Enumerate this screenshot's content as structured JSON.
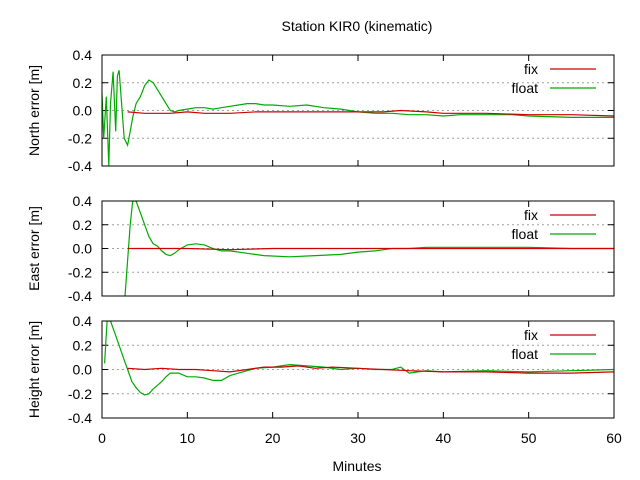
{
  "chart_data": {
    "type": "line",
    "title": "Station KIR0 (kinematic)",
    "xlabel": "Minutes",
    "xlim": [
      0,
      60
    ],
    "x_ticks": [
      0,
      10,
      20,
      30,
      40,
      50,
      60
    ],
    "x_tick_labels": [
      "0",
      "10",
      "20",
      "30",
      "40",
      "50",
      "60"
    ],
    "grid": "horizontal dotted",
    "legend_position": "top-right",
    "series_colors": {
      "fix": "#cc0000",
      "float": "#00aa00"
    },
    "panels": [
      {
        "ylabel": "North error [m]",
        "ylim": [
          -0.4,
          0.4
        ],
        "y_ticks": [
          -0.4,
          -0.2,
          0.0,
          0.2,
          0.4
        ],
        "y_tick_labels": [
          "-0.4",
          "-0.2",
          "0.0",
          "0.2",
          "0.4"
        ],
        "series": [
          {
            "name": "fix",
            "color": "#cc0000",
            "x": [
              3,
              5,
              8,
              10,
              12,
              15,
              18,
              20,
              22,
              25,
              28,
              30,
              33,
              35,
              38,
              40,
              45,
              50,
              55,
              60
            ],
            "y": [
              -0.01,
              -0.02,
              -0.02,
              -0.01,
              -0.02,
              -0.02,
              -0.01,
              -0.01,
              -0.01,
              -0.01,
              -0.01,
              -0.01,
              -0.01,
              0.0,
              -0.01,
              -0.02,
              -0.02,
              -0.03,
              -0.03,
              -0.04
            ]
          },
          {
            "name": "float",
            "color": "#00aa00",
            "x": [
              0,
              0.2,
              0.5,
              0.8,
              1,
              1.3,
              1.6,
              1.8,
              2,
              2.3,
              2.6,
              3,
              3.3,
              3.6,
              4,
              4.5,
              5,
              5.5,
              6,
              6.5,
              7,
              7.5,
              8,
              8.5,
              9,
              10,
              11,
              12,
              13,
              14,
              15,
              16,
              17,
              18,
              19,
              20,
              22,
              24,
              26,
              28,
              30,
              32,
              34,
              36,
              38,
              40,
              42,
              45,
              48,
              50,
              55,
              60
            ],
            "y": [
              0.12,
              -0.2,
              0.1,
              -0.4,
              0.05,
              0.28,
              -0.15,
              0.25,
              0.29,
              0.05,
              -0.2,
              -0.25,
              -0.15,
              -0.05,
              0.05,
              0.1,
              0.18,
              0.22,
              0.2,
              0.15,
              0.1,
              0.05,
              0.0,
              -0.01,
              0.0,
              0.01,
              0.02,
              0.02,
              0.01,
              0.02,
              0.03,
              0.04,
              0.05,
              0.05,
              0.04,
              0.04,
              0.03,
              0.04,
              0.02,
              0.01,
              -0.01,
              -0.02,
              -0.02,
              -0.03,
              -0.03,
              -0.04,
              -0.03,
              -0.03,
              -0.03,
              -0.04,
              -0.05,
              -0.05
            ]
          }
        ]
      },
      {
        "ylabel": "East error [m]",
        "ylim": [
          -0.4,
          0.4
        ],
        "y_ticks": [
          -0.4,
          -0.2,
          0.0,
          0.2,
          0.4
        ],
        "y_tick_labels": [
          "-0.4",
          "-0.2",
          "0.0",
          "0.2",
          "0.4"
        ],
        "series": [
          {
            "name": "fix",
            "color": "#cc0000",
            "x": [
              3,
              5,
              10,
              15,
              20,
              25,
              30,
              35,
              40,
              45,
              50,
              55,
              60
            ],
            "y": [
              0.0,
              0.0,
              0.0,
              -0.01,
              0.0,
              0.0,
              0.0,
              0.0,
              0.0,
              0.0,
              0.0,
              0.0,
              0.0
            ]
          },
          {
            "name": "float",
            "color": "#00aa00",
            "x": [
              2.7,
              3.0,
              3.3,
              3.6,
              4.0,
              4.5,
              5,
              5.5,
              6,
              6.5,
              7,
              7.5,
              8,
              8.5,
              9,
              10,
              11,
              12,
              13,
              14,
              15,
              17,
              19,
              22,
              25,
              28,
              30,
              32,
              34,
              36,
              38,
              40,
              42,
              45,
              50,
              55,
              60
            ],
            "y": [
              -0.4,
              -0.1,
              0.2,
              0.4,
              0.4,
              0.3,
              0.2,
              0.1,
              0.04,
              0.02,
              -0.02,
              -0.05,
              -0.06,
              -0.04,
              -0.01,
              0.03,
              0.04,
              0.03,
              0.0,
              -0.02,
              -0.02,
              -0.04,
              -0.06,
              -0.07,
              -0.06,
              -0.05,
              -0.03,
              -0.02,
              0.0,
              0.0,
              0.01,
              0.01,
              0.01,
              0.01,
              0.01,
              0.0,
              0.0
            ]
          }
        ]
      },
      {
        "ylabel": "Height error [m]",
        "ylim": [
          -0.4,
          0.4
        ],
        "y_ticks": [
          -0.4,
          -0.2,
          0.0,
          0.2,
          0.4
        ],
        "y_tick_labels": [
          "-0.4",
          "-0.2",
          "0.0",
          "0.2",
          "0.4"
        ],
        "series": [
          {
            "name": "fix",
            "color": "#cc0000",
            "x": [
              3,
              5,
              7,
              9,
              11,
              13,
              15,
              17,
              19,
              21,
              23,
              25,
              27,
              30,
              33,
              36,
              40,
              45,
              50,
              55,
              60
            ],
            "y": [
              0.01,
              0.0,
              0.01,
              0.0,
              0.0,
              -0.01,
              -0.02,
              0.0,
              0.02,
              0.02,
              0.03,
              0.01,
              0.02,
              0.01,
              0.0,
              -0.01,
              -0.02,
              -0.02,
              -0.03,
              -0.03,
              -0.02
            ]
          },
          {
            "name": "float",
            "color": "#00aa00",
            "x": [
              0.3,
              0.6,
              1,
              1.5,
              2,
              2.5,
              3,
              3.5,
              4,
              4.5,
              5,
              5.5,
              6,
              6.5,
              7,
              7.5,
              8,
              9,
              10,
              11,
              12,
              13,
              14,
              15,
              16,
              18,
              20,
              22,
              24,
              26,
              28,
              30,
              32,
              34,
              35,
              36,
              38,
              40,
              45,
              50,
              55,
              60
            ],
            "y": [
              0.05,
              0.4,
              0.4,
              0.3,
              0.2,
              0.1,
              0.0,
              -0.1,
              -0.15,
              -0.19,
              -0.21,
              -0.2,
              -0.16,
              -0.13,
              -0.1,
              -0.06,
              -0.03,
              -0.03,
              -0.06,
              -0.06,
              -0.07,
              -0.09,
              -0.09,
              -0.05,
              -0.03,
              0.01,
              0.02,
              0.04,
              0.03,
              0.02,
              0.0,
              0.01,
              0.0,
              0.0,
              0.02,
              -0.03,
              -0.01,
              -0.02,
              -0.01,
              -0.02,
              -0.01,
              0.0
            ]
          }
        ]
      }
    ]
  }
}
